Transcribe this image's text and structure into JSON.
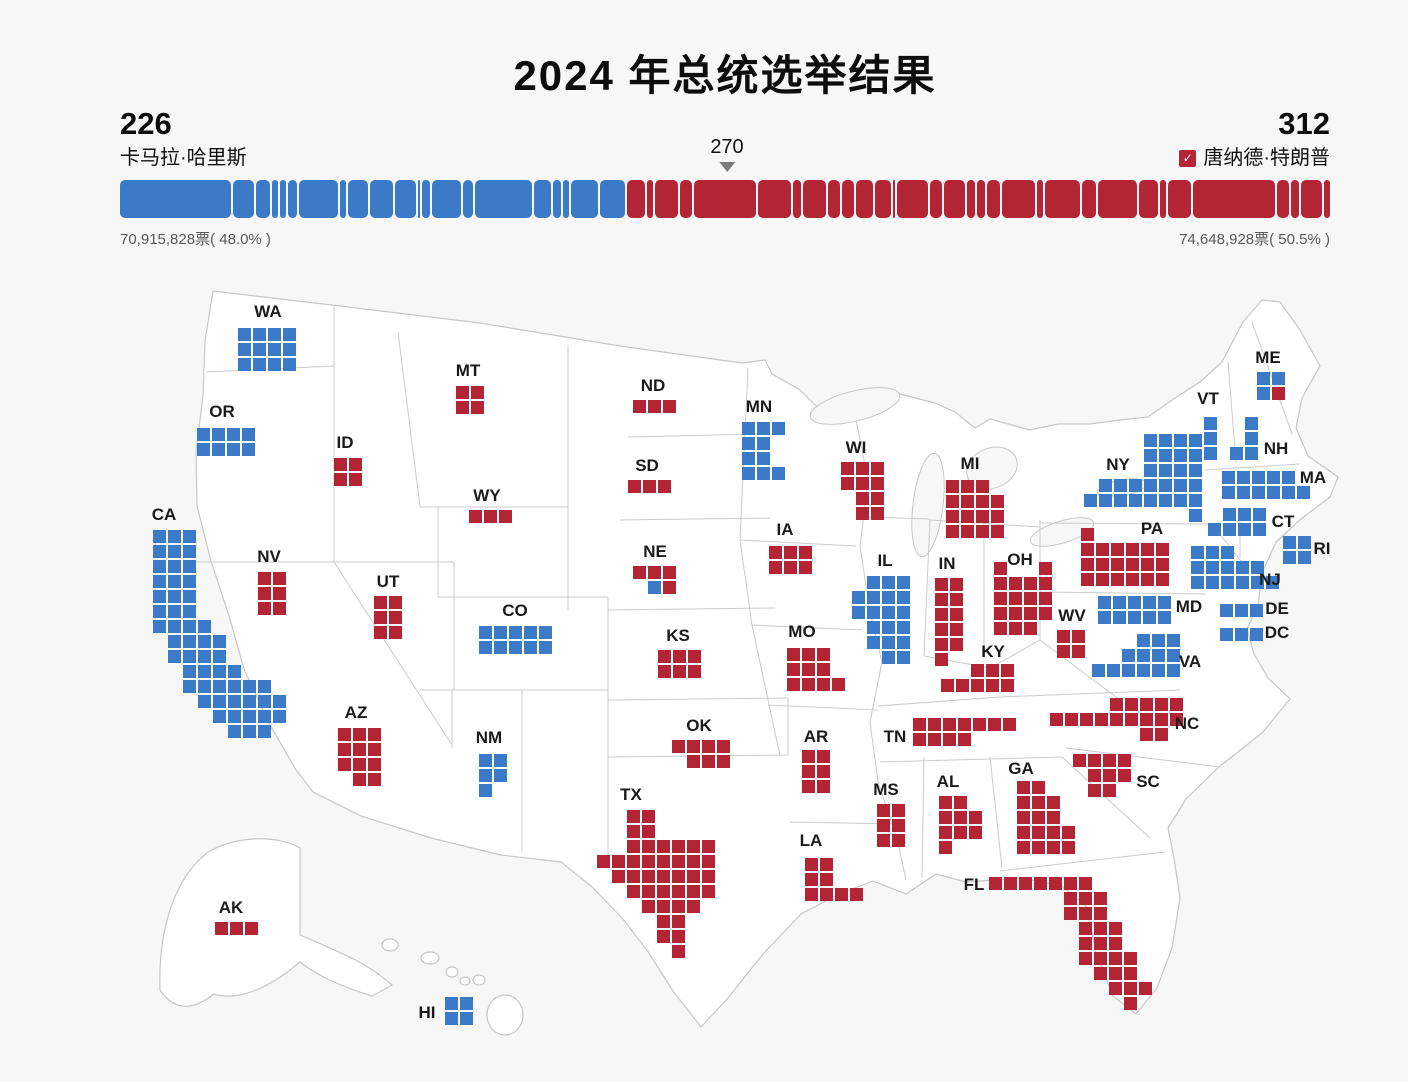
{
  "title": "2024 年总统选举结果",
  "colors": {
    "dem": "#3a7ac7",
    "rep": "#b32434",
    "land": "#ffffff",
    "border": "#c7c7c7",
    "background": "#f7f7f7",
    "marker": "#7a7a7a"
  },
  "header": {
    "dem_total": "226",
    "dem_name": "卡马拉·哈里斯",
    "dem_votes": "70,915,828票( 48.0% )",
    "rep_total": "312",
    "rep_name": "唐纳德·特朗普",
    "rep_votes": "74,648,928票( 50.5% )",
    "winner_check": "✓",
    "threshold_label": "270"
  },
  "chart_data": {
    "type": "waffle-map",
    "title": "2024 年总统选举结果",
    "threshold": 270,
    "total_electoral_votes": 538,
    "candidates": [
      {
        "name": "卡马拉·哈里斯",
        "party": "dem",
        "electoral_votes": 226,
        "popular_votes": "70,915,828",
        "share": "48.0%"
      },
      {
        "name": "唐纳德·特朗普",
        "party": "rep",
        "electoral_votes": 312,
        "popular_votes": "74,648,928",
        "share": "50.5%"
      }
    ],
    "bar": {
      "dem_segments": [
        {
          "state": "CA",
          "ev": 54
        },
        {
          "state": "CO",
          "ev": 10
        },
        {
          "state": "CT",
          "ev": 7
        },
        {
          "state": "DC",
          "ev": 3
        },
        {
          "state": "DE",
          "ev": 3
        },
        {
          "state": "HI",
          "ev": 4
        },
        {
          "state": "IL",
          "ev": 19
        },
        {
          "state": "ME",
          "ev": 3
        },
        {
          "state": "MD",
          "ev": 10
        },
        {
          "state": "MA",
          "ev": 11
        },
        {
          "state": "MN",
          "ev": 10
        },
        {
          "state": "NE-02",
          "ev": 1
        },
        {
          "state": "NH",
          "ev": 4
        },
        {
          "state": "NJ",
          "ev": 14
        },
        {
          "state": "NM",
          "ev": 5
        },
        {
          "state": "NY",
          "ev": 28
        },
        {
          "state": "OR",
          "ev": 8
        },
        {
          "state": "RI",
          "ev": 4
        },
        {
          "state": "VT",
          "ev": 3
        },
        {
          "state": "VA",
          "ev": 13
        },
        {
          "state": "WA",
          "ev": 12
        }
      ],
      "rep_segments": [
        {
          "state": "AL",
          "ev": 9
        },
        {
          "state": "AK",
          "ev": 3
        },
        {
          "state": "AZ",
          "ev": 11
        },
        {
          "state": "AR",
          "ev": 6
        },
        {
          "state": "FL",
          "ev": 30
        },
        {
          "state": "GA",
          "ev": 16
        },
        {
          "state": "ID",
          "ev": 4
        },
        {
          "state": "IN",
          "ev": 11
        },
        {
          "state": "IA",
          "ev": 6
        },
        {
          "state": "KS",
          "ev": 6
        },
        {
          "state": "KY",
          "ev": 8
        },
        {
          "state": "LA",
          "ev": 8
        },
        {
          "state": "ME-02",
          "ev": 1
        },
        {
          "state": "MI",
          "ev": 15
        },
        {
          "state": "MS",
          "ev": 6
        },
        {
          "state": "MO",
          "ev": 10
        },
        {
          "state": "MT",
          "ev": 4
        },
        {
          "state": "NE",
          "ev": 4
        },
        {
          "state": "NV",
          "ev": 6
        },
        {
          "state": "NC",
          "ev": 16
        },
        {
          "state": "ND",
          "ev": 3
        },
        {
          "state": "OH",
          "ev": 17
        },
        {
          "state": "OK",
          "ev": 7
        },
        {
          "state": "PA",
          "ev": 19
        },
        {
          "state": "SC",
          "ev": 9
        },
        {
          "state": "SD",
          "ev": 3
        },
        {
          "state": "TN",
          "ev": 11
        },
        {
          "state": "TX",
          "ev": 40
        },
        {
          "state": "UT",
          "ev": 6
        },
        {
          "state": "WV",
          "ev": 4
        },
        {
          "state": "WI",
          "ev": 10
        },
        {
          "state": "WY",
          "ev": 3
        }
      ]
    },
    "states": [
      {
        "id": "WA",
        "party": "dem",
        "ev": 12,
        "label": [
          268,
          312
        ],
        "grid": [
          238,
          328
        ],
        "pattern": [
          "1111",
          "1111",
          "1111"
        ]
      },
      {
        "id": "OR",
        "party": "dem",
        "ev": 8,
        "label": [
          222,
          412
        ],
        "grid": [
          197,
          428
        ],
        "pattern": [
          "1111",
          "1111"
        ]
      },
      {
        "id": "CA",
        "party": "dem",
        "ev": 54,
        "label": [
          164,
          515
        ],
        "grid": [
          153,
          530
        ],
        "pattern": [
          "111",
          "111",
          "111",
          "111",
          "111",
          "111",
          "1111",
          ".1111",
          ".1111",
          "..1111",
          "..111111",
          "...111111",
          "....11111",
          ".....111"
        ]
      },
      {
        "id": "NV",
        "party": "rep",
        "ev": 6,
        "label": [
          269,
          557
        ],
        "grid": [
          258,
          572
        ],
        "pattern": [
          "11",
          "11",
          "11"
        ]
      },
      {
        "id": "ID",
        "party": "rep",
        "ev": 4,
        "label": [
          345,
          443
        ],
        "grid": [
          334,
          458
        ],
        "pattern": [
          "11",
          "11"
        ]
      },
      {
        "id": "MT",
        "party": "rep",
        "ev": 4,
        "label": [
          468,
          371
        ],
        "grid": [
          456,
          386
        ],
        "pattern": [
          "11",
          "11"
        ]
      },
      {
        "id": "WY",
        "party": "rep",
        "ev": 3,
        "label": [
          487,
          496
        ],
        "grid": [
          469,
          510
        ],
        "pattern": [
          "111"
        ]
      },
      {
        "id": "UT",
        "party": "rep",
        "ev": 6,
        "label": [
          388,
          582
        ],
        "grid": [
          374,
          596
        ],
        "pattern": [
          "11",
          "11",
          "11"
        ]
      },
      {
        "id": "CO",
        "party": "dem",
        "ev": 10,
        "label": [
          515,
          611
        ],
        "grid": [
          479,
          626
        ],
        "pattern": [
          "11111",
          "11111"
        ]
      },
      {
        "id": "AZ",
        "party": "rep",
        "ev": 11,
        "label": [
          356,
          713
        ],
        "grid": [
          338,
          728
        ],
        "pattern": [
          "111",
          "111",
          "111",
          ".11"
        ]
      },
      {
        "id": "NM",
        "party": "dem",
        "ev": 5,
        "label": [
          489,
          738
        ],
        "grid": [
          479,
          754
        ],
        "pattern": [
          "11",
          "11",
          "1"
        ]
      },
      {
        "id": "ND",
        "party": "rep",
        "ev": 3,
        "label": [
          653,
          386
        ],
        "grid": [
          633,
          400
        ],
        "pattern": [
          "111"
        ]
      },
      {
        "id": "SD",
        "party": "rep",
        "ev": 3,
        "label": [
          647,
          466
        ],
        "grid": [
          628,
          480
        ],
        "pattern": [
          "111"
        ]
      },
      {
        "id": "NE",
        "party": "rep",
        "ev": 5,
        "label": [
          655,
          552
        ],
        "grid": [
          633,
          566
        ],
        "pattern": [
          "111",
          ".br"
        ]
      },
      {
        "id": "KS",
        "party": "rep",
        "ev": 6,
        "label": [
          678,
          636
        ],
        "grid": [
          658,
          650
        ],
        "pattern": [
          "111",
          "111"
        ]
      },
      {
        "id": "OK",
        "party": "rep",
        "ev": 7,
        "label": [
          699,
          726
        ],
        "grid": [
          672,
          740
        ],
        "pattern": [
          "1111",
          ".111"
        ]
      },
      {
        "id": "TX",
        "party": "rep",
        "ev": 40,
        "label": [
          631,
          795
        ],
        "grid": [
          597,
          810
        ],
        "pattern": [
          "..11",
          "..11",
          "..111111",
          "11111111",
          ".1111111",
          "..111111",
          "...1111",
          "....11",
          "....11",
          ".....1"
        ]
      },
      {
        "id": "MN",
        "party": "dem",
        "ev": 10,
        "label": [
          759,
          407
        ],
        "grid": [
          742,
          422
        ],
        "pattern": [
          "111",
          "11",
          "11",
          "111"
        ]
      },
      {
        "id": "IA",
        "party": "rep",
        "ev": 6,
        "label": [
          785,
          530
        ],
        "grid": [
          769,
          546
        ],
        "pattern": [
          "111",
          "111"
        ]
      },
      {
        "id": "MO",
        "party": "rep",
        "ev": 10,
        "label": [
          802,
          632
        ],
        "grid": [
          787,
          648
        ],
        "pattern": [
          "111",
          "111",
          "1111"
        ]
      },
      {
        "id": "AR",
        "party": "rep",
        "ev": 6,
        "label": [
          816,
          737
        ],
        "grid": [
          802,
          750
        ],
        "pattern": [
          "11",
          "11",
          "11"
        ]
      },
      {
        "id": "LA",
        "party": "rep",
        "ev": 8,
        "label": [
          811,
          841
        ],
        "grid": [
          805,
          858
        ],
        "pattern": [
          "11",
          "11",
          "1111"
        ]
      },
      {
        "id": "WI",
        "party": "rep",
        "ev": 10,
        "label": [
          856,
          448
        ],
        "grid": [
          841,
          462
        ],
        "pattern": [
          "111",
          "111",
          ".11",
          ".11"
        ]
      },
      {
        "id": "IL",
        "party": "dem",
        "ev": 19,
        "label": [
          885,
          561
        ],
        "grid": [
          852,
          576
        ],
        "pattern": [
          ".111",
          "1111",
          "1111",
          ".111",
          ".111",
          "..11"
        ]
      },
      {
        "id": "MI",
        "party": "rep",
        "ev": 15,
        "label": [
          970,
          464
        ],
        "grid": [
          946,
          480
        ],
        "pattern": [
          "111",
          "1111",
          "1111",
          "1111"
        ]
      },
      {
        "id": "IN",
        "party": "rep",
        "ev": 11,
        "label": [
          947,
          564
        ],
        "grid": [
          935,
          578
        ],
        "pattern": [
          "11",
          "11",
          "11",
          "11",
          "11",
          "1"
        ]
      },
      {
        "id": "OH",
        "party": "rep",
        "ev": 17,
        "label": [
          1020,
          560
        ],
        "grid": [
          994,
          562
        ],
        "pattern": [
          "1..1",
          "1111",
          "1111",
          "1111",
          "111"
        ]
      },
      {
        "id": "KY",
        "party": "rep",
        "ev": 8,
        "label": [
          993,
          652
        ],
        "grid": [
          941,
          664
        ],
        "pattern": [
          "..111",
          "11111"
        ]
      },
      {
        "id": "TN",
        "party": "rep",
        "ev": 11,
        "label": [
          895,
          737
        ],
        "grid": [
          913,
          718
        ],
        "pattern": [
          "1111111",
          "1111"
        ]
      },
      {
        "id": "MS",
        "party": "rep",
        "ev": 6,
        "label": [
          886,
          790
        ],
        "grid": [
          877,
          804
        ],
        "pattern": [
          "11",
          "11",
          "11"
        ]
      },
      {
        "id": "AL",
        "party": "rep",
        "ev": 9,
        "label": [
          948,
          782
        ],
        "grid": [
          939,
          796
        ],
        "pattern": [
          "11",
          "111",
          "111",
          "1"
        ]
      },
      {
        "id": "GA",
        "party": "rep",
        "ev": 16,
        "label": [
          1021,
          769
        ],
        "grid": [
          1017,
          781
        ],
        "pattern": [
          "11",
          "111",
          "111",
          "1111",
          "1111"
        ]
      },
      {
        "id": "SC",
        "party": "rep",
        "ev": 9,
        "label": [
          1148,
          782
        ],
        "grid": [
          1073,
          754
        ],
        "pattern": [
          "1111",
          ".111",
          ".11"
        ]
      },
      {
        "id": "FL",
        "party": "rep",
        "ev": 30,
        "label": [
          974,
          885
        ],
        "grid": [
          989,
          877
        ],
        "pattern": [
          "1111111",
          ".....111",
          ".....111",
          "......111",
          "......111",
          "......1111",
          ".......111",
          "........111",
          ".........1"
        ]
      },
      {
        "id": "NC",
        "party": "rep",
        "ev": 16,
        "label": [
          1187,
          724
        ],
        "grid": [
          1050,
          698
        ],
        "pattern": [
          "....11111",
          "111111111",
          "......11"
        ]
      },
      {
        "id": "VA",
        "party": "dem",
        "ev": 13,
        "label": [
          1190,
          662
        ],
        "grid": [
          1092,
          634
        ],
        "pattern": [
          "...111",
          "..1111",
          "111111"
        ]
      },
      {
        "id": "WV",
        "party": "rep",
        "ev": 4,
        "label": [
          1072,
          616
        ],
        "grid": [
          1057,
          630
        ],
        "pattern": [
          "11",
          "11"
        ]
      },
      {
        "id": "MD",
        "party": "dem",
        "ev": 10,
        "label": [
          1189,
          607
        ],
        "grid": [
          1098,
          596
        ],
        "pattern": [
          "11111",
          "11111"
        ]
      },
      {
        "id": "DE",
        "party": "dem",
        "ev": 3,
        "label": [
          1277,
          609
        ],
        "grid": [
          1220,
          604
        ],
        "pattern": [
          "111"
        ]
      },
      {
        "id": "DC",
        "party": "dem",
        "ev": 3,
        "label": [
          1277,
          633
        ],
        "grid": [
          1220,
          628
        ],
        "pattern": [
          "111"
        ]
      },
      {
        "id": "PA",
        "party": "rep",
        "ev": 19,
        "label": [
          1152,
          529
        ],
        "grid": [
          1081,
          528
        ],
        "pattern": [
          "1",
          "111111",
          "111111",
          "111111"
        ]
      },
      {
        "id": "NY",
        "party": "dem",
        "ev": 28,
        "label": [
          1118,
          465
        ],
        "grid": [
          1084,
          434
        ],
        "pattern": [
          "....1111",
          "....1111",
          "....1111",
          ".1111111",
          "11111111",
          ".......1"
        ]
      },
      {
        "id": "NJ",
        "party": "dem",
        "ev": 14,
        "label": [
          1270,
          580
        ],
        "grid": [
          1191,
          546
        ],
        "pattern": [
          "111",
          "11111",
          "111111"
        ]
      },
      {
        "id": "CT",
        "party": "dem",
        "ev": 7,
        "label": [
          1283,
          522
        ],
        "grid": [
          1208,
          508
        ],
        "pattern": [
          ".111",
          "1111"
        ]
      },
      {
        "id": "RI",
        "party": "dem",
        "ev": 4,
        "label": [
          1322,
          549
        ],
        "grid": [
          1283,
          536
        ],
        "pattern": [
          "11",
          "11"
        ]
      },
      {
        "id": "MA",
        "party": "dem",
        "ev": 11,
        "label": [
          1313,
          478
        ],
        "grid": [
          1222,
          471
        ],
        "pattern": [
          "11111",
          "111111"
        ]
      },
      {
        "id": "VT",
        "party": "dem",
        "ev": 3,
        "label": [
          1208,
          399
        ],
        "grid": [
          1204,
          417
        ],
        "pattern": [
          "1",
          "1",
          "1"
        ]
      },
      {
        "id": "NH",
        "party": "dem",
        "ev": 4,
        "label": [
          1276,
          449
        ],
        "grid": [
          1230,
          417
        ],
        "pattern": [
          ".1",
          ".1",
          "11"
        ]
      },
      {
        "id": "ME",
        "party": "dem",
        "ev": 4,
        "label": [
          1268,
          358
        ],
        "grid": [
          1257,
          372
        ],
        "pattern": [
          "bb",
          "br"
        ]
      },
      {
        "id": "AK",
        "party": "rep",
        "ev": 3,
        "label": [
          231,
          908
        ],
        "grid": [
          215,
          922
        ],
        "pattern": [
          "111"
        ]
      },
      {
        "id": "HI",
        "party": "dem",
        "ev": 4,
        "label": [
          427,
          1013
        ],
        "grid": [
          445,
          997
        ],
        "pattern": [
          "11",
          "11"
        ]
      }
    ]
  }
}
